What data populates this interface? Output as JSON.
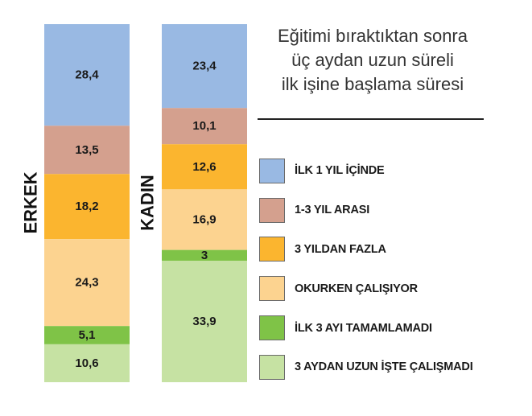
{
  "chart_data": {
    "type": "bar",
    "stacked": true,
    "orientation": "vertical",
    "title_lines": [
      "Eğitimi bıraktıktan sonra",
      "üç aydan uzun süreli",
      "ilk işine başlama süresi"
    ],
    "categories": [
      "ERKEK",
      "KADIN"
    ],
    "series": [
      {
        "name": "İLK 1 YIL İÇİNDE",
        "color": "#99b9e3",
        "values": [
          28.4,
          23.4
        ],
        "labels": [
          "28,4",
          "23,4"
        ]
      },
      {
        "name": "1-3 YIL ARASI",
        "color": "#d4a08e",
        "values": [
          13.5,
          10.1
        ],
        "labels": [
          "13,5",
          "10,1"
        ]
      },
      {
        "name": "3 YILDAN FAZLA",
        "color": "#fbb52f",
        "values": [
          18.2,
          12.6
        ],
        "labels": [
          "18,2",
          "12,6"
        ]
      },
      {
        "name": "OKURKEN ÇALIŞIYOR",
        "color": "#fcd390",
        "values": [
          24.3,
          16.9
        ],
        "labels": [
          "24,3",
          "16,9"
        ]
      },
      {
        "name": "İLK 3 AYI TAMAMLAMADI",
        "color": "#7fc347",
        "values": [
          5.1,
          3
        ],
        "labels": [
          "5,1",
          "3"
        ]
      },
      {
        "name": "3 AYDAN UZUN İŞTE ÇALIŞMADI",
        "color": "#c6e2a3",
        "values": [
          10.6,
          33.9
        ],
        "labels": [
          "10,6",
          "33,9"
        ]
      }
    ],
    "legend_position": "right",
    "grid": false
  }
}
